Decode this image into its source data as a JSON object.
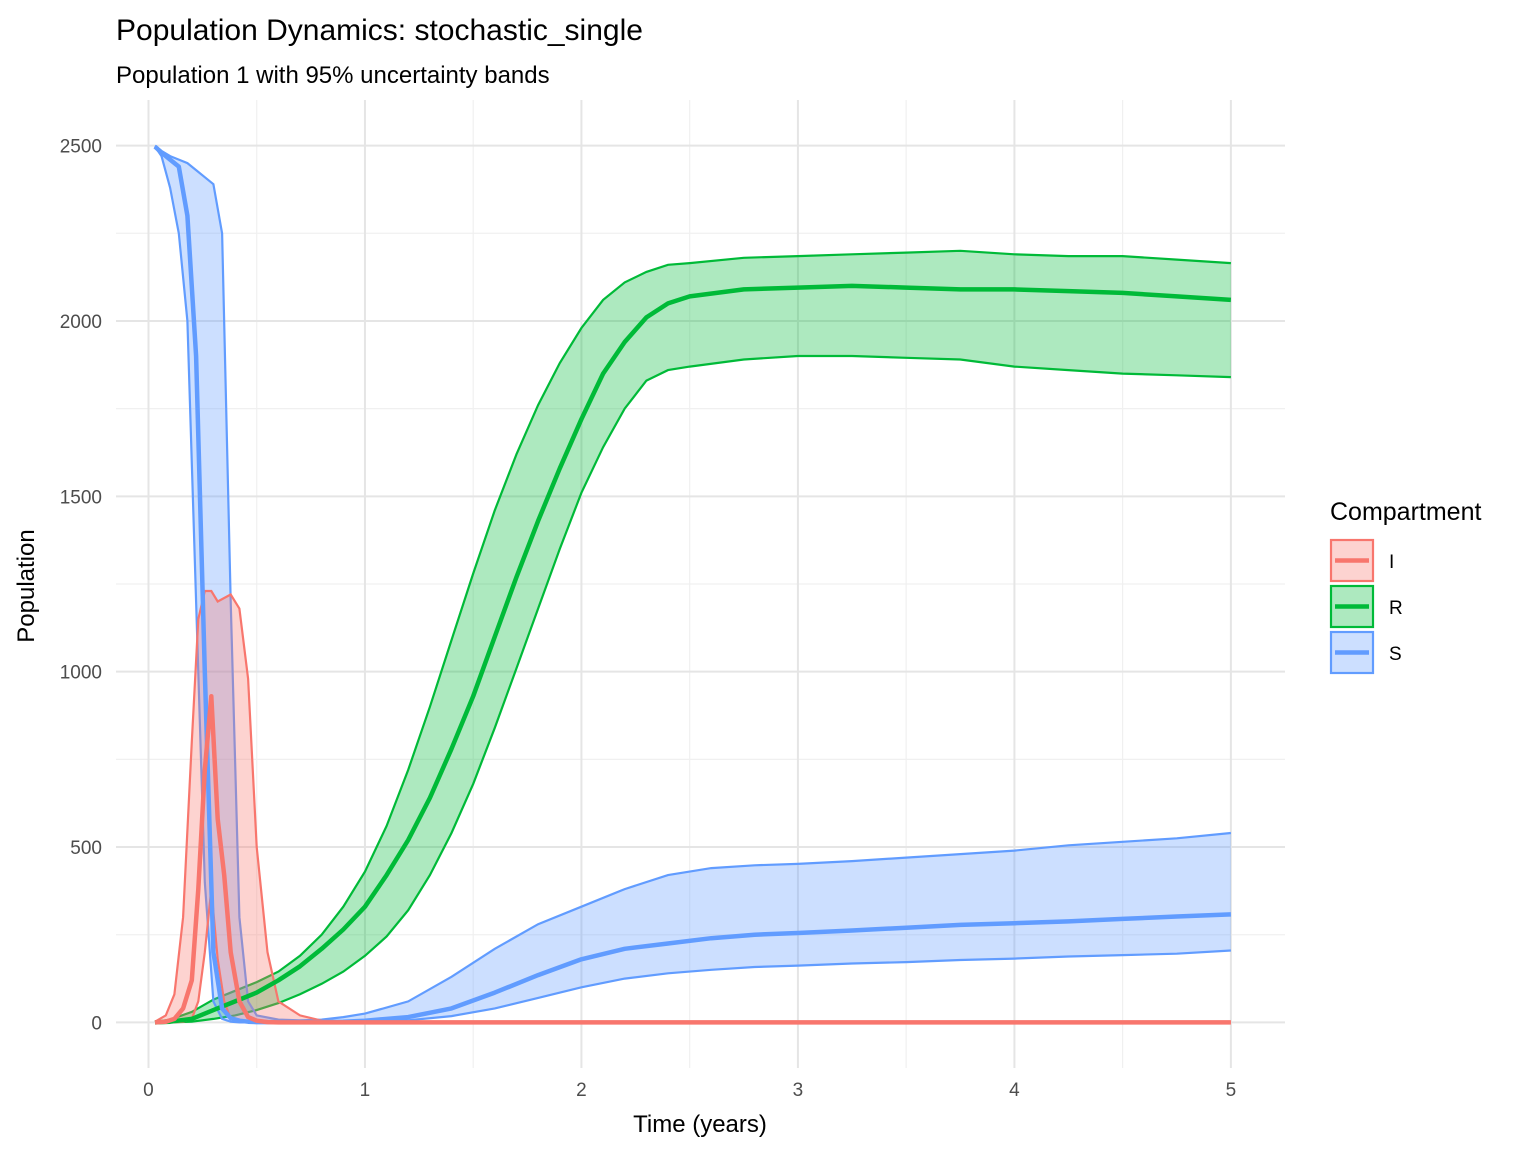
{
  "chart_data": {
    "type": "line",
    "title": "Population Dynamics: stochastic_single",
    "subtitle": "Population 1 with 95% uncertainty bands",
    "xlabel": "Time (years)",
    "ylabel": "Population",
    "xlim": [
      -0.15,
      5.25
    ],
    "ylim": [
      -130,
      2630
    ],
    "x_ticks": [
      0,
      1,
      2,
      3,
      4,
      5
    ],
    "y_ticks": [
      0,
      500,
      1000,
      1500,
      2000,
      2500
    ],
    "x_minor": [
      0.5,
      1.5,
      2.5,
      3.5,
      4.5
    ],
    "y_minor": [
      250,
      750,
      1250,
      1750,
      2250
    ],
    "grid": true,
    "legend": {
      "title": "Compartment",
      "position": "right"
    },
    "series": [
      {
        "name": "I",
        "color": "#F8766D",
        "x": [
          0.03,
          0.08,
          0.12,
          0.16,
          0.2,
          0.23,
          0.26,
          0.29,
          0.32,
          0.35,
          0.38,
          0.42,
          0.46,
          0.5,
          0.55,
          0.6,
          0.7,
          0.8,
          1.0,
          2.0,
          3.0,
          4.0,
          5.0
        ],
        "mean": [
          0,
          2,
          10,
          40,
          120,
          380,
          720,
          930,
          580,
          420,
          200,
          60,
          15,
          5,
          1,
          0,
          0,
          0,
          0,
          0,
          0,
          0,
          0
        ],
        "lower": [
          0,
          0,
          0,
          2,
          10,
          60,
          200,
          380,
          180,
          60,
          10,
          2,
          0,
          0,
          0,
          0,
          0,
          0,
          0,
          0,
          0,
          0,
          0
        ],
        "upper": [
          2,
          20,
          80,
          300,
          800,
          1150,
          1230,
          1230,
          1200,
          1210,
          1220,
          1180,
          980,
          500,
          200,
          60,
          20,
          5,
          2,
          0,
          0,
          0,
          0
        ]
      },
      {
        "name": "R",
        "color": "#00BA38",
        "x": [
          0.03,
          0.1,
          0.2,
          0.3,
          0.4,
          0.5,
          0.6,
          0.7,
          0.8,
          0.9,
          1.0,
          1.1,
          1.2,
          1.3,
          1.4,
          1.5,
          1.6,
          1.7,
          1.8,
          1.9,
          2.0,
          2.1,
          2.2,
          2.3,
          2.4,
          2.5,
          2.75,
          3.0,
          3.25,
          3.5,
          3.75,
          4.0,
          4.25,
          4.5,
          4.75,
          5.0
        ],
        "mean": [
          0,
          2,
          10,
          35,
          60,
          85,
          120,
          160,
          210,
          265,
          330,
          420,
          520,
          640,
          780,
          930,
          1100,
          1270,
          1430,
          1580,
          1720,
          1850,
          1940,
          2010,
          2050,
          2070,
          2090,
          2095,
          2100,
          2095,
          2090,
          2090,
          2085,
          2080,
          2070,
          2060
        ],
        "lower": [
          0,
          0,
          2,
          10,
          20,
          35,
          55,
          80,
          110,
          145,
          190,
          245,
          320,
          420,
          540,
          680,
          840,
          1010,
          1180,
          1350,
          1510,
          1640,
          1750,
          1830,
          1860,
          1870,
          1890,
          1900,
          1900,
          1895,
          1890,
          1870,
          1860,
          1850,
          1845,
          1840
        ],
        "upper": [
          1,
          8,
          30,
          65,
          90,
          115,
          145,
          190,
          250,
          330,
          430,
          560,
          720,
          900,
          1090,
          1280,
          1460,
          1620,
          1760,
          1880,
          1980,
          2060,
          2110,
          2140,
          2160,
          2165,
          2180,
          2185,
          2190,
          2195,
          2200,
          2190,
          2185,
          2185,
          2175,
          2165
        ]
      },
      {
        "name": "S",
        "color": "#619CFF",
        "x": [
          0.03,
          0.06,
          0.1,
          0.14,
          0.18,
          0.22,
          0.26,
          0.3,
          0.34,
          0.38,
          0.42,
          0.46,
          0.5,
          0.6,
          0.7,
          0.8,
          0.9,
          1.0,
          1.2,
          1.4,
          1.6,
          1.8,
          2.0,
          2.2,
          2.4,
          2.6,
          2.8,
          3.0,
          3.25,
          3.5,
          3.75,
          4.0,
          4.25,
          4.5,
          4.75,
          5.0
        ],
        "mean": [
          2497,
          2480,
          2460,
          2440,
          2300,
          1900,
          1000,
          200,
          40,
          12,
          5,
          2,
          1,
          1,
          1,
          1,
          2,
          5,
          15,
          40,
          85,
          135,
          180,
          210,
          225,
          240,
          250,
          255,
          262,
          270,
          278,
          283,
          288,
          295,
          302,
          308
        ],
        "lower": [
          2497,
          2470,
          2380,
          2250,
          2000,
          1200,
          400,
          60,
          10,
          2,
          0,
          0,
          0,
          0,
          0,
          0,
          1,
          2,
          6,
          18,
          40,
          70,
          100,
          125,
          140,
          150,
          158,
          162,
          168,
          172,
          178,
          182,
          188,
          192,
          196,
          205
        ],
        "upper": [
          2500,
          2485,
          2470,
          2460,
          2450,
          2430,
          2410,
          2390,
          2250,
          1200,
          300,
          60,
          20,
          8,
          6,
          8,
          15,
          25,
          60,
          130,
          210,
          280,
          330,
          380,
          420,
          440,
          448,
          452,
          460,
          470,
          480,
          490,
          505,
          515,
          525,
          540
        ]
      }
    ]
  }
}
